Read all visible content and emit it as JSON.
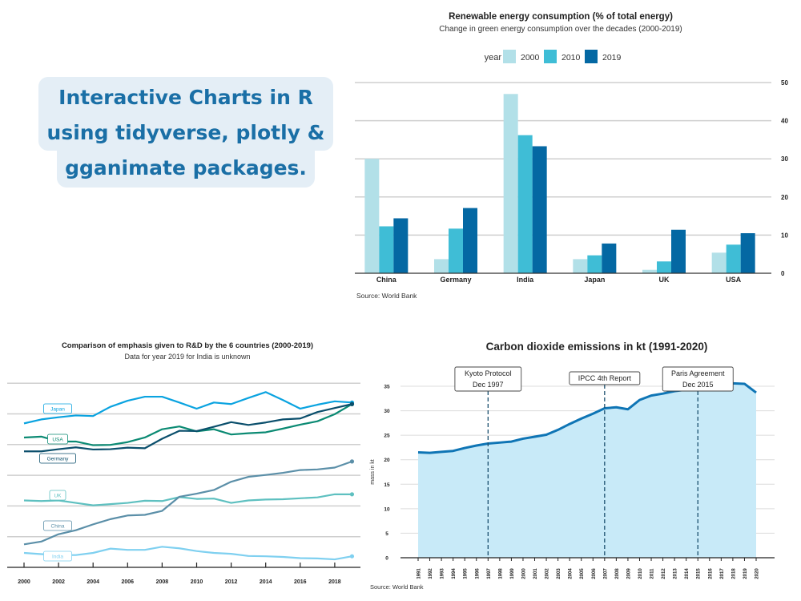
{
  "banner": {
    "lines": [
      "Interactive Charts in R",
      "using tidyverse, plotly &",
      "gganimate packages."
    ],
    "background": "#e4eef6",
    "color": "#1a6fa6"
  },
  "chart_data": [
    {
      "type": "bar",
      "title": "Renewable energy consumption (% of total energy)",
      "subtitle": "Change in green energy consumption over the decades (2000-2019)",
      "legend_title": "year",
      "legend_position": "top",
      "categories": [
        "China",
        "Germany",
        "India",
        "Japan",
        "UK",
        "USA"
      ],
      "series": [
        {
          "name": "2000",
          "color": "#b2e0e8",
          "values": [
            30.0,
            3.7,
            47.0,
            3.7,
            0.9,
            5.4
          ]
        },
        {
          "name": "2010",
          "color": "#3fbdd6",
          "values": [
            12.3,
            11.7,
            36.2,
            4.7,
            3.1,
            7.5
          ]
        },
        {
          "name": "2019",
          "color": "#0468a3",
          "values": [
            14.4,
            17.1,
            33.3,
            7.8,
            11.4,
            10.5
          ]
        }
      ],
      "ylim": [
        0,
        50
      ],
      "yticks": [
        "0",
        "10",
        "20",
        "30",
        "40",
        "50"
      ],
      "y_axis_side": "right",
      "grid": true,
      "caption": "Source: World Bank"
    },
    {
      "type": "line",
      "title": "Comparison of emphasis given to R&D by the 6 countries (2000-2019)",
      "subtitle": "Data for year 2019 for India is unknown",
      "x": [
        2000,
        2001,
        2002,
        2003,
        2004,
        2005,
        2006,
        2007,
        2008,
        2009,
        2010,
        2011,
        2012,
        2013,
        2014,
        2015,
        2016,
        2017,
        2018,
        2019
      ],
      "xticks": [
        "2000",
        "2002",
        "2004",
        "2006",
        "2008",
        "2010",
        "2012",
        "2014",
        "2016",
        "2018"
      ],
      "ylim": [
        0,
        6
      ],
      "y_tick_labels_shown": false,
      "grid": true,
      "series": [
        {
          "name": "Japan",
          "color": "#0aa3e0",
          "values": [
            4.69,
            4.82,
            4.89,
            4.95,
            4.93,
            5.23,
            5.43,
            5.56,
            5.56,
            5.37,
            5.17,
            5.37,
            5.32,
            5.52,
            5.71,
            5.45,
            5.17,
            5.3,
            5.41,
            5.37
          ]
        },
        {
          "name": "USA",
          "color": "#0b8a73",
          "values": [
            4.23,
            4.26,
            4.1,
            4.1,
            3.98,
            3.99,
            4.08,
            4.23,
            4.5,
            4.59,
            4.43,
            4.5,
            4.33,
            4.37,
            4.4,
            4.52,
            4.65,
            4.76,
            4.99,
            5.32
          ]
        },
        {
          "name": "Germany",
          "color": "#0b4f6c",
          "values": [
            3.78,
            3.78,
            3.85,
            3.91,
            3.84,
            3.85,
            3.9,
            3.88,
            4.19,
            4.45,
            4.44,
            4.58,
            4.73,
            4.64,
            4.72,
            4.82,
            4.85,
            5.06,
            5.19,
            5.32
          ]
        },
        {
          "name": "UK",
          "color": "#5ec0c0",
          "values": [
            2.18,
            2.16,
            2.18,
            2.1,
            2.02,
            2.06,
            2.1,
            2.17,
            2.16,
            2.29,
            2.23,
            2.24,
            2.1,
            2.18,
            2.21,
            2.22,
            2.25,
            2.28,
            2.38,
            2.38
          ]
        },
        {
          "name": "China",
          "color": "#5b8fa8",
          "values": [
            0.75,
            0.84,
            1.08,
            1.21,
            1.4,
            1.57,
            1.69,
            1.71,
            1.84,
            2.3,
            2.4,
            2.52,
            2.79,
            2.95,
            3.01,
            3.08,
            3.17,
            3.19,
            3.25,
            3.45
          ]
        },
        {
          "name": "India",
          "color": "#7fd0f0",
          "values": [
            0.47,
            0.43,
            0.4,
            0.4,
            0.47,
            0.61,
            0.57,
            0.57,
            0.67,
            0.62,
            0.53,
            0.47,
            0.44,
            0.37,
            0.36,
            0.34,
            0.3,
            0.29,
            0.26,
            0.36
          ]
        }
      ]
    },
    {
      "type": "area",
      "title": "Carbon dioxide emissions in kt (1991-2020)",
      "ylabel": "mass in kt",
      "x": [
        1991,
        1992,
        1993,
        1994,
        1995,
        1996,
        1997,
        1998,
        1999,
        2000,
        2001,
        2002,
        2003,
        2004,
        2005,
        2006,
        2007,
        2008,
        2009,
        2010,
        2011,
        2012,
        2013,
        2014,
        2015,
        2016,
        2017,
        2018,
        2019,
        2020
      ],
      "values": [
        21.5,
        21.4,
        21.6,
        21.8,
        22.4,
        22.9,
        23.3,
        23.5,
        23.7,
        24.3,
        24.7,
        25.1,
        26.1,
        27.3,
        28.4,
        29.4,
        30.5,
        30.7,
        30.3,
        32.2,
        33.1,
        33.5,
        34.0,
        34.3,
        34.3,
        34.3,
        34.6,
        35.6,
        35.5,
        33.7
      ],
      "ylim": [
        0,
        35
      ],
      "yticks": [
        "0",
        "5",
        "10",
        "15",
        "20",
        "25",
        "30",
        "35"
      ],
      "line_color": "#0f75b5",
      "fill_color": "#c8eaf8",
      "grid": true,
      "annotations": [
        {
          "x": 1997,
          "lines": [
            "Kyoto Protocol",
            "Dec 1997"
          ]
        },
        {
          "x": 2007,
          "lines": [
            "IPCC 4th Report"
          ]
        },
        {
          "x": 2015,
          "lines": [
            "Paris Agreement",
            "Dec 2015"
          ]
        }
      ],
      "caption": "Source: World Bank"
    }
  ]
}
